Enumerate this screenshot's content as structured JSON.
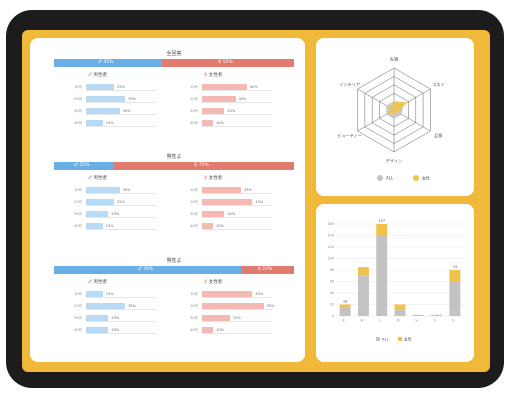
{
  "colors": {
    "male": "#6aaee6",
    "female": "#e27b6f",
    "frame": "#f0b93a",
    "bezel": "#1c1c1c",
    "all": "#c3c3c3",
    "highlight": "#f0c24b"
  },
  "sections": [
    {
      "title": "全回答",
      "male_pct": "45%",
      "female_pct": "55%",
      "male_ratio": 0.45,
      "male_head": "男性者",
      "female_head": "女性者",
      "male_rows": [
        {
          "label": "10代",
          "value": "25%",
          "ratio": 0.25
        },
        {
          "label": "20代",
          "value": "35%",
          "ratio": 0.35
        },
        {
          "label": "30代",
          "value": "30%",
          "ratio": 0.3
        },
        {
          "label": "40代",
          "value": "15%",
          "ratio": 0.15
        }
      ],
      "female_rows": [
        {
          "label": "10代",
          "value": "40%",
          "ratio": 0.4
        },
        {
          "label": "20代",
          "value": "30%",
          "ratio": 0.3
        },
        {
          "label": "30代",
          "value": "20%",
          "ratio": 0.2
        },
        {
          "label": "40代",
          "value": "10%",
          "ratio": 0.1
        }
      ]
    },
    {
      "title": "男性よ",
      "male_pct": "25%",
      "female_pct": "75%",
      "male_ratio": 0.25,
      "male_head": "男性者",
      "female_head": "女性者",
      "male_rows": [
        {
          "label": "10代",
          "value": "30%",
          "ratio": 0.3
        },
        {
          "label": "20代",
          "value": "25%",
          "ratio": 0.25
        },
        {
          "label": "30代",
          "value": "20%",
          "ratio": 0.2
        },
        {
          "label": "40代",
          "value": "15%",
          "ratio": 0.15
        }
      ],
      "female_rows": [
        {
          "label": "10代",
          "value": "35%",
          "ratio": 0.35
        },
        {
          "label": "20代",
          "value": "45%",
          "ratio": 0.45
        },
        {
          "label": "30代",
          "value": "20%",
          "ratio": 0.2
        },
        {
          "label": "40代",
          "value": "10%",
          "ratio": 0.1
        }
      ]
    },
    {
      "title": "男性よ",
      "male_pct": "78%",
      "female_pct": "22%",
      "male_ratio": 0.78,
      "male_head": "男性者",
      "female_head": "女性者",
      "male_rows": [
        {
          "label": "10代",
          "value": "15%",
          "ratio": 0.15
        },
        {
          "label": "20代",
          "value": "35%",
          "ratio": 0.35
        },
        {
          "label": "30代",
          "value": "20%",
          "ratio": 0.2
        },
        {
          "label": "40代",
          "value": "20%",
          "ratio": 0.2
        }
      ],
      "female_rows": [
        {
          "label": "10代",
          "value": "45%",
          "ratio": 0.45
        },
        {
          "label": "20代",
          "value": "55%",
          "ratio": 0.55
        },
        {
          "label": "30代",
          "value": "25%",
          "ratio": 0.25
        },
        {
          "label": "40代",
          "value": "10%",
          "ratio": 0.1
        }
      ]
    }
  ],
  "radar": {
    "axes": [
      "先端",
      "コスト",
      "品質",
      "デザイン",
      "ビューティー",
      "インテリア"
    ],
    "legend": [
      "ALL",
      "女性"
    ],
    "all_values": [
      0.2,
      0.25,
      0.2,
      0.2,
      0.2,
      0.2
    ],
    "highlight_values": [
      0.2,
      0.35,
      0.1,
      0.1,
      0.15,
      0.1
    ]
  },
  "chart_data": {
    "type": "bar",
    "categories": [
      "A",
      "B",
      "C",
      "D",
      "E",
      "F",
      "G"
    ],
    "series": [
      {
        "name": "ALL",
        "values": [
          15,
          70,
          140,
          12,
          2,
          2,
          60
        ]
      },
      {
        "name": "女性",
        "values": [
          5,
          15,
          20,
          8,
          0,
          0,
          20
        ]
      }
    ],
    "totals": [
      "18",
      "",
      "157",
      "",
      "",
      "",
      "74"
    ],
    "ylim": [
      0,
      160
    ],
    "yticks": [
      "0",
      "20",
      "40",
      "60",
      "80",
      "100",
      "120",
      "140",
      "160"
    ],
    "legend": [
      "ALL",
      "女性"
    ]
  }
}
